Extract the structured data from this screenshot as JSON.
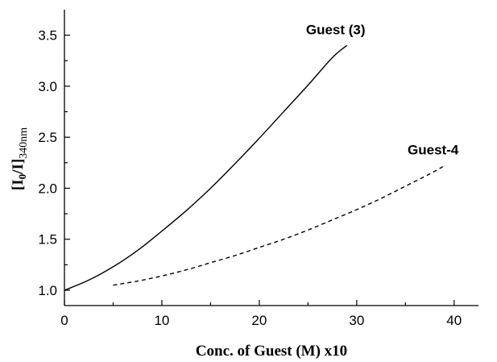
{
  "chart_data": {
    "type": "line",
    "xlabel": "Conc. of Guest (M) x10",
    "ylabel": {
      "main": "[I",
      "sub0": "0",
      "mid": "/I]",
      "sub1": "340nm"
    },
    "xlim": [
      0,
      42.5
    ],
    "ylim": [
      0.85,
      3.75
    ],
    "x_ticks": [
      "0",
      "10",
      "20",
      "30",
      "40"
    ],
    "y_ticks": [
      "1.0",
      "1.5",
      "2.0",
      "2.5",
      "3.0",
      "3.5"
    ],
    "grid": false,
    "series": [
      {
        "name": "Guest (3)",
        "style": "solid",
        "x": [
          0,
          2.5,
          5,
          7.5,
          10,
          12.5,
          15,
          17.5,
          20,
          22.5,
          25,
          27.5,
          29
        ],
        "y": [
          1.0,
          1.1,
          1.23,
          1.39,
          1.58,
          1.78,
          2.0,
          2.24,
          2.49,
          2.75,
          3.01,
          3.28,
          3.4
        ]
      },
      {
        "name": "Guest-4",
        "style": "dashed",
        "x": [
          5,
          7.5,
          10,
          12.5,
          15,
          17.5,
          20,
          22.5,
          25,
          27.5,
          30,
          32.5,
          35,
          37.5,
          39
        ],
        "y": [
          1.05,
          1.09,
          1.14,
          1.2,
          1.27,
          1.34,
          1.42,
          1.5,
          1.59,
          1.69,
          1.79,
          1.9,
          2.02,
          2.14,
          2.22
        ]
      }
    ]
  }
}
